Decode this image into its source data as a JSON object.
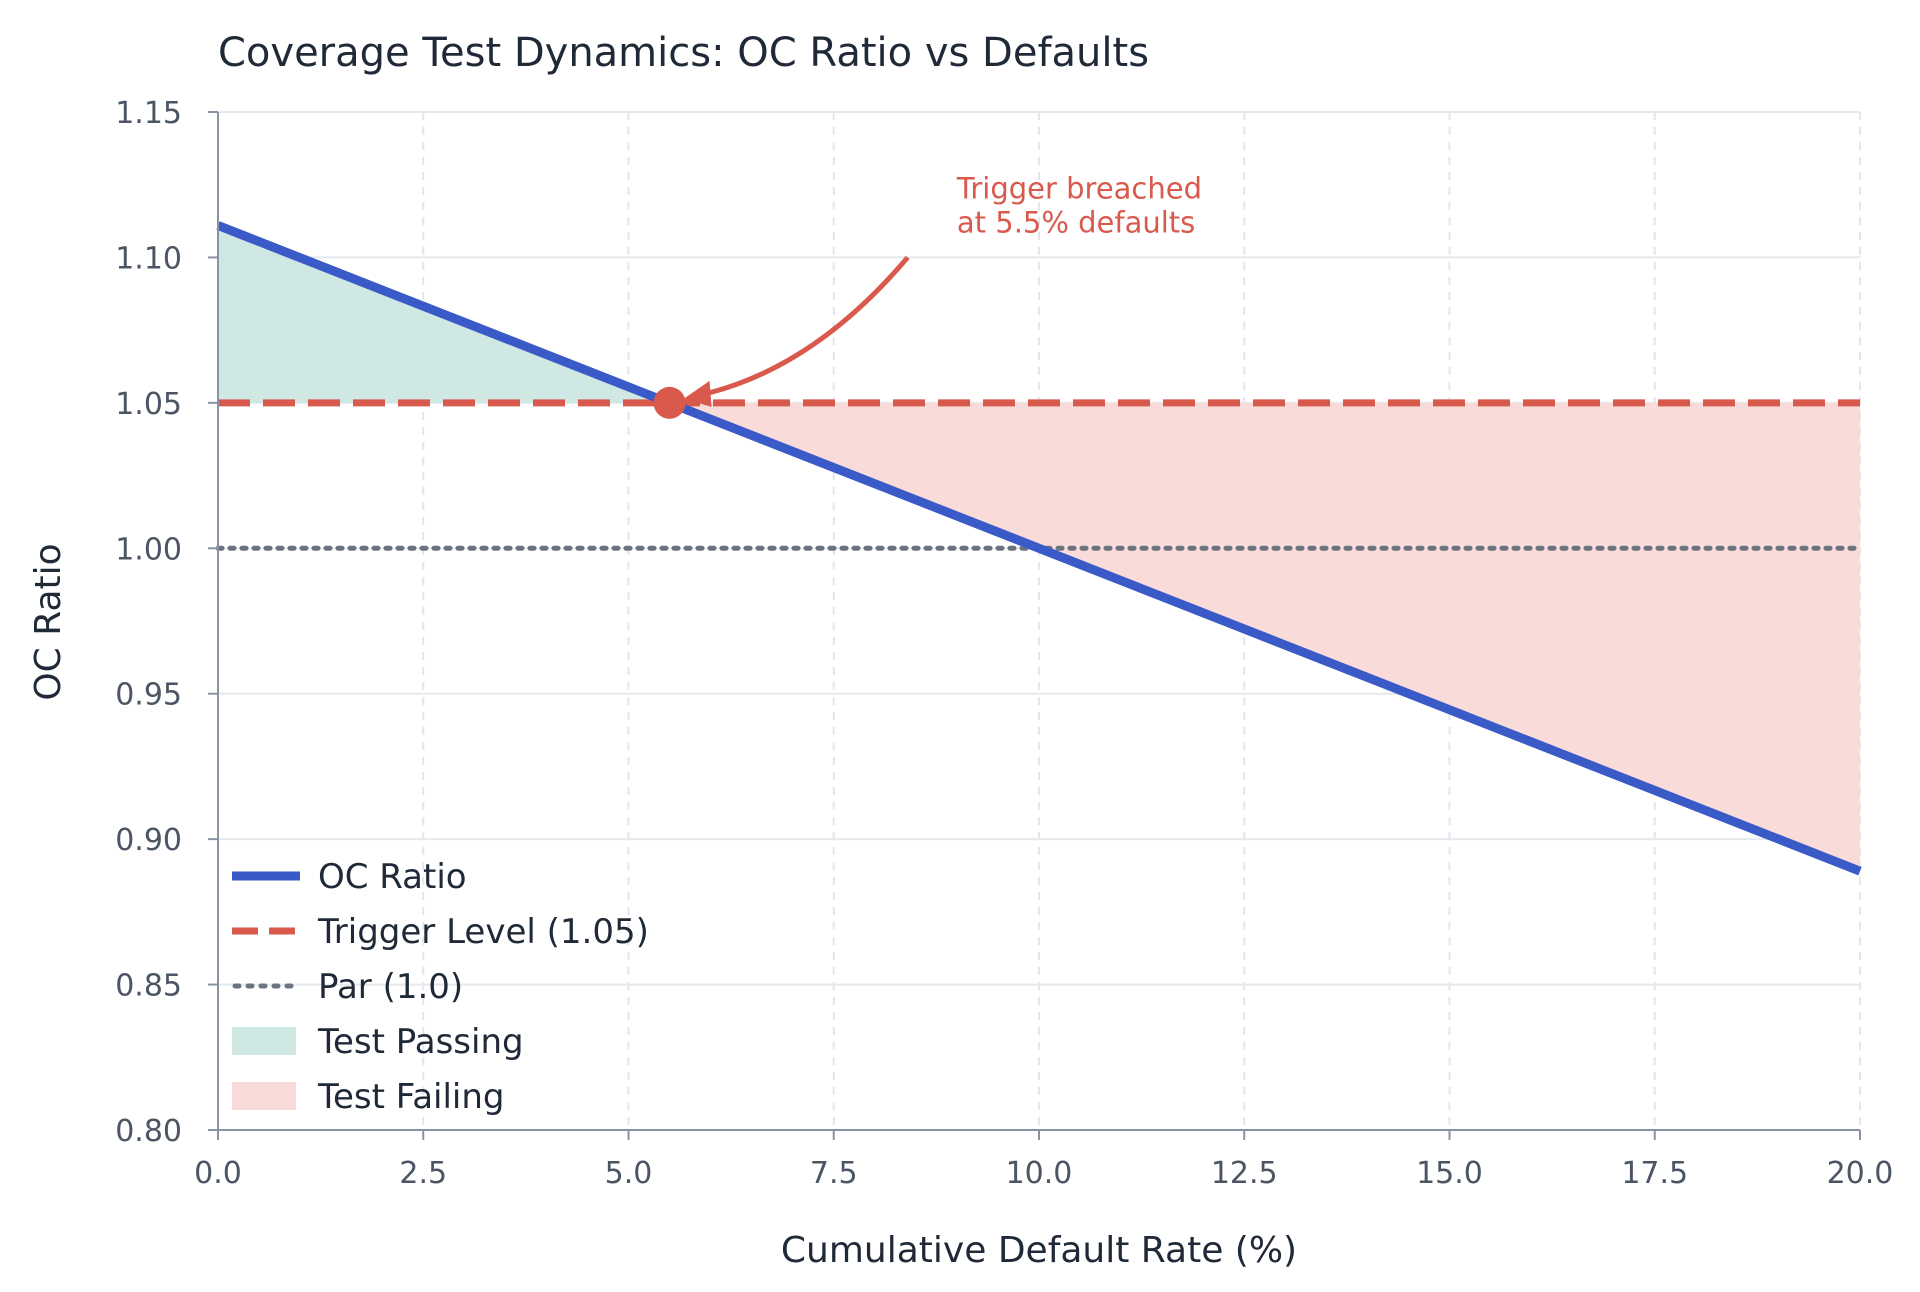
{
  "chart_data": {
    "type": "line",
    "title": "Coverage Test Dynamics: OC Ratio vs Defaults",
    "xlabel": "Cumulative Default Rate (%)",
    "ylabel": "OC Ratio",
    "xlim": [
      0,
      20
    ],
    "ylim": [
      0.8,
      1.15
    ],
    "x_ticks": [
      "0.0",
      "2.5",
      "5.0",
      "7.5",
      "10.0",
      "12.5",
      "15.0",
      "17.5",
      "20.0"
    ],
    "y_ticks": [
      "0.80",
      "0.85",
      "0.90",
      "0.95",
      "1.00",
      "1.05",
      "1.10",
      "1.15"
    ],
    "grid": true,
    "legend_position": "lower-left",
    "series": [
      {
        "name": "OC Ratio",
        "style": "solid",
        "color": "#3a5bc7",
        "x": [
          0,
          20
        ],
        "y": [
          1.111,
          0.889
        ]
      }
    ],
    "reference_lines": [
      {
        "name": "Trigger Level (1.05)",
        "y": 1.05,
        "style": "dashed",
        "color": "#d9594c"
      },
      {
        "name": "Par (1.0)",
        "y": 1.0,
        "style": "dotted",
        "color": "#6b7280"
      }
    ],
    "fills": [
      {
        "name": "Test Passing",
        "color": "#cfe8e3",
        "x_from": 0,
        "x_to": 5.5,
        "between": "OC Ratio and Trigger Level"
      },
      {
        "name": "Test Failing",
        "color": "#f9dcd9",
        "x_from": 5.5,
        "x_to": 20,
        "between": "Trigger Level and OC Ratio"
      }
    ],
    "annotation": {
      "lines": [
        "Trigger breached",
        "at 5.5% defaults"
      ],
      "point": {
        "x": 5.5,
        "y": 1.05
      },
      "text_anchor": {
        "x": 9.0,
        "y": 1.125
      }
    }
  }
}
